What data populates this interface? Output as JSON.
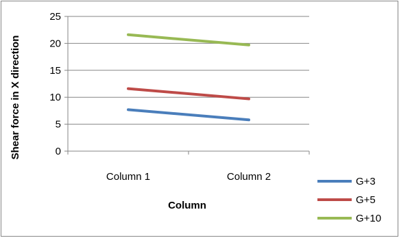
{
  "chart_data": {
    "type": "line",
    "categories": [
      "Column 1",
      "Column 2"
    ],
    "series": [
      {
        "name": "G+3",
        "values": [
          7.7,
          5.8
        ],
        "color": "#4a7ebb"
      },
      {
        "name": "G+5",
        "values": [
          11.6,
          9.7
        ],
        "color": "#be4b48"
      },
      {
        "name": "G+10",
        "values": [
          21.6,
          19.7
        ],
        "color": "#98b954"
      }
    ],
    "title": "",
    "xlabel": "Column",
    "ylabel": "Shear force in X direction",
    "ylim": [
      0,
      25
    ],
    "yticks": [
      0,
      5,
      10,
      15,
      20,
      25
    ],
    "grid": true,
    "legend": "bottom-right"
  },
  "colors": {
    "border": "#868686",
    "gridline": "#868686",
    "axis": "#868686"
  }
}
